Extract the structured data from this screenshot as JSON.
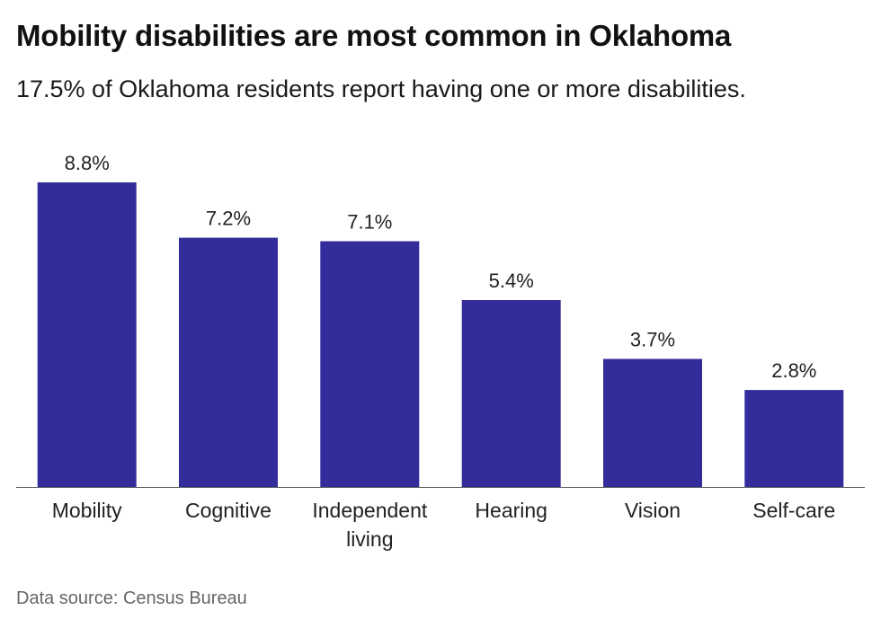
{
  "header": {
    "title": "Mobility disabilities are most common in Oklahoma",
    "subtitle": "17.5% of Oklahoma residents report having one or more disabilities."
  },
  "chart_data": {
    "type": "bar",
    "categories": [
      "Mobility",
      "Cognitive",
      "Independent living",
      "Hearing",
      "Vision",
      "Self-care"
    ],
    "category_label_lines": [
      [
        "Mobility"
      ],
      [
        "Cognitive"
      ],
      [
        "Independent",
        "living"
      ],
      [
        "Hearing"
      ],
      [
        "Vision"
      ],
      [
        "Self-care"
      ]
    ],
    "values": [
      8.8,
      7.2,
      7.1,
      5.4,
      3.7,
      2.8
    ],
    "value_labels": [
      "8.8%",
      "7.2%",
      "7.1%",
      "5.4%",
      "3.7%",
      "2.8%"
    ],
    "ylim": [
      0,
      8.8
    ],
    "grid": false,
    "bar_color": "#332d9c",
    "xlabel": "",
    "ylabel": ""
  },
  "footer": {
    "source": "Data source: Census Bureau"
  }
}
